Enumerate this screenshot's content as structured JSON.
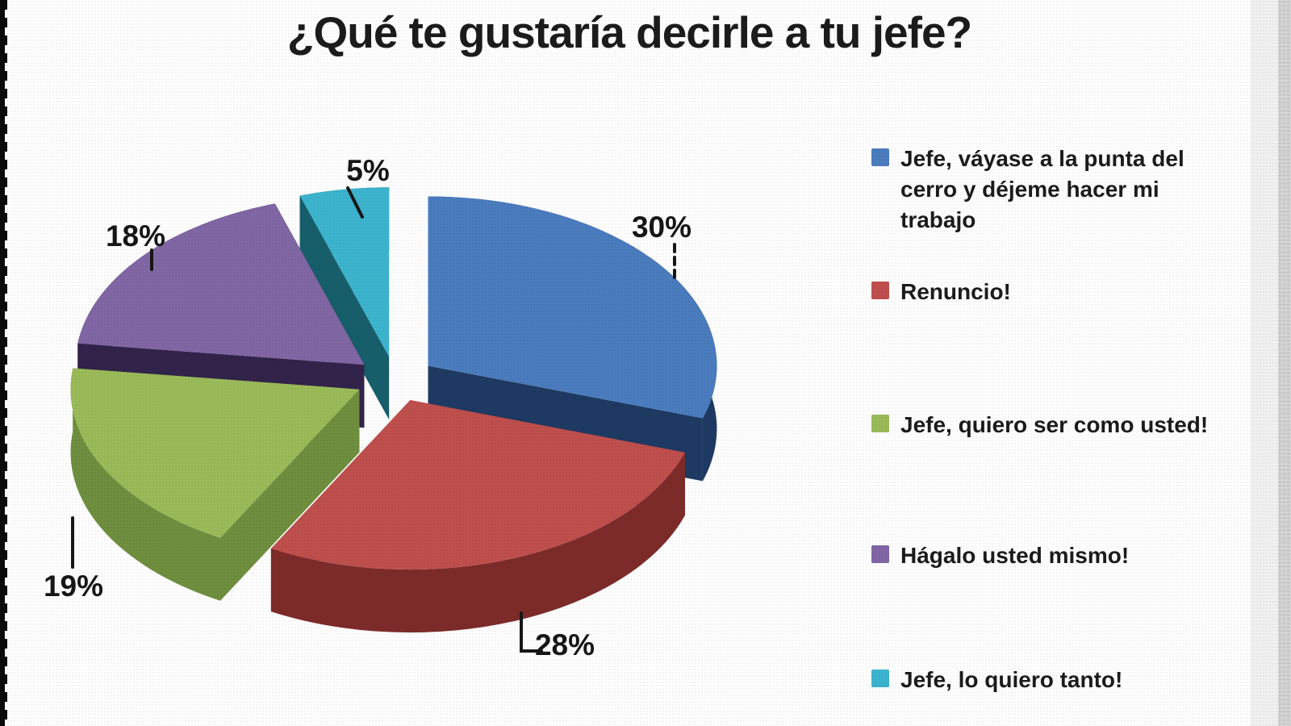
{
  "title": "¿Qué te gustaría decirle a tu jefe?",
  "chart_data": {
    "type": "pie",
    "title": "¿Qué te gustaría decirle a tu jefe?",
    "style": "3d-exploded",
    "start_angle_deg": 0,
    "direction": "clockwise",
    "legend_position": "right",
    "unit": "percent",
    "slices": [
      {
        "key": "vayase-punta-cerro",
        "label": "Jefe, váyase a la punta del cerro y déjeme hacer mi trabajo",
        "value": 30,
        "pct_label": "30%",
        "color": "#4A7CBE",
        "side_color": "#1E3A62"
      },
      {
        "key": "renuncio",
        "label": "Renuncio!",
        "value": 28,
        "pct_label": "28%",
        "color": "#BF4F4C",
        "side_color": "#7D2B29"
      },
      {
        "key": "quiero-ser-como-usted",
        "label": "Jefe, quiero ser como usted!",
        "value": 19,
        "pct_label": "19%",
        "color": "#9BBB59",
        "side_color": "#6F8F3E"
      },
      {
        "key": "hagalo-usted-mismo",
        "label": "Hágalo usted mismo!",
        "value": 18,
        "pct_label": "18%",
        "color": "#8166A4",
        "side_color": "#32234A"
      },
      {
        "key": "lo-quiero-tanto",
        "label": "Jefe, lo quiero tanto!",
        "value": 5,
        "pct_label": "5%",
        "color": "#3CB4CE",
        "side_color": "#175E6B"
      }
    ]
  }
}
